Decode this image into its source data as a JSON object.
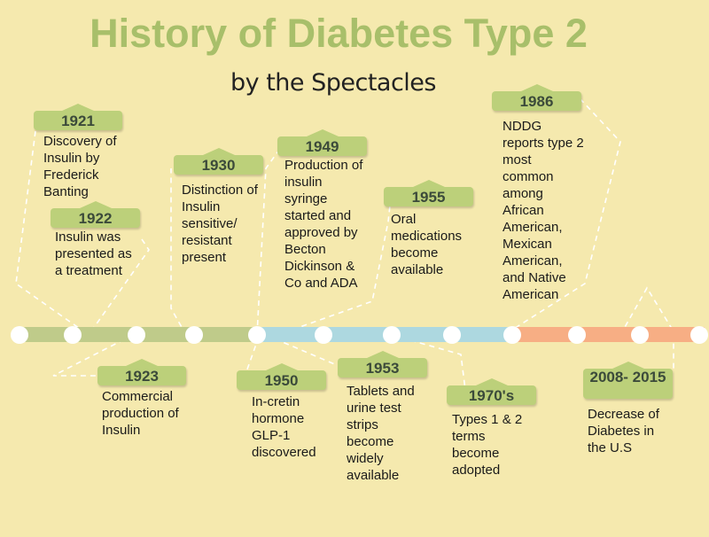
{
  "title": "History of Diabetes Type 2",
  "subtitle": "by the Spectacles",
  "colors": {
    "background": "#f5e9ae",
    "title": "#a8bf6a",
    "tag": "#bcd07a",
    "segment_green": "#bfcb8a",
    "segment_blue": "#add8e0",
    "segment_orange": "#f7ae84",
    "node": "#ffffff"
  },
  "events": [
    {
      "year": "1921",
      "text": "Discovery of\nInsulin by\nFrederick\nBanting"
    },
    {
      "year": "1922",
      "text": "Insulin was\npresented as\na treatment"
    },
    {
      "year": "1923",
      "text": "Commercial\nproduction of\nInsulin"
    },
    {
      "year": "1930",
      "text": "Distinction of\nInsulin\nsensitive/\nresistant\npresent"
    },
    {
      "year": "1949",
      "text": "Production of\ninsulin\nsyringe\nstarted and\napproved by\nBecton\nDickinson &\nCo and ADA"
    },
    {
      "year": "1950",
      "text": "In-cretin\nhormone\nGLP-1\ndiscovered"
    },
    {
      "year": "1953",
      "text": "Tablets and\nurine test\nstrips\nbecome\nwidely\navailable"
    },
    {
      "year": "1955",
      "text": "Oral\nmedications\nbecome\navailable"
    },
    {
      "year": "1970's",
      "text": "Types 1 & 2\nterms\nbecome\nadopted"
    },
    {
      "year": "1986",
      "text": "NDDG\nreports type 2\nmost\ncommon\namong\nAfrican\nAmerican,\nMexican\nAmerican,\nand Native\nAmerican"
    },
    {
      "year": "2008-\n2015",
      "text": "Decrease of\nDiabetes in\nthe U.S"
    }
  ]
}
